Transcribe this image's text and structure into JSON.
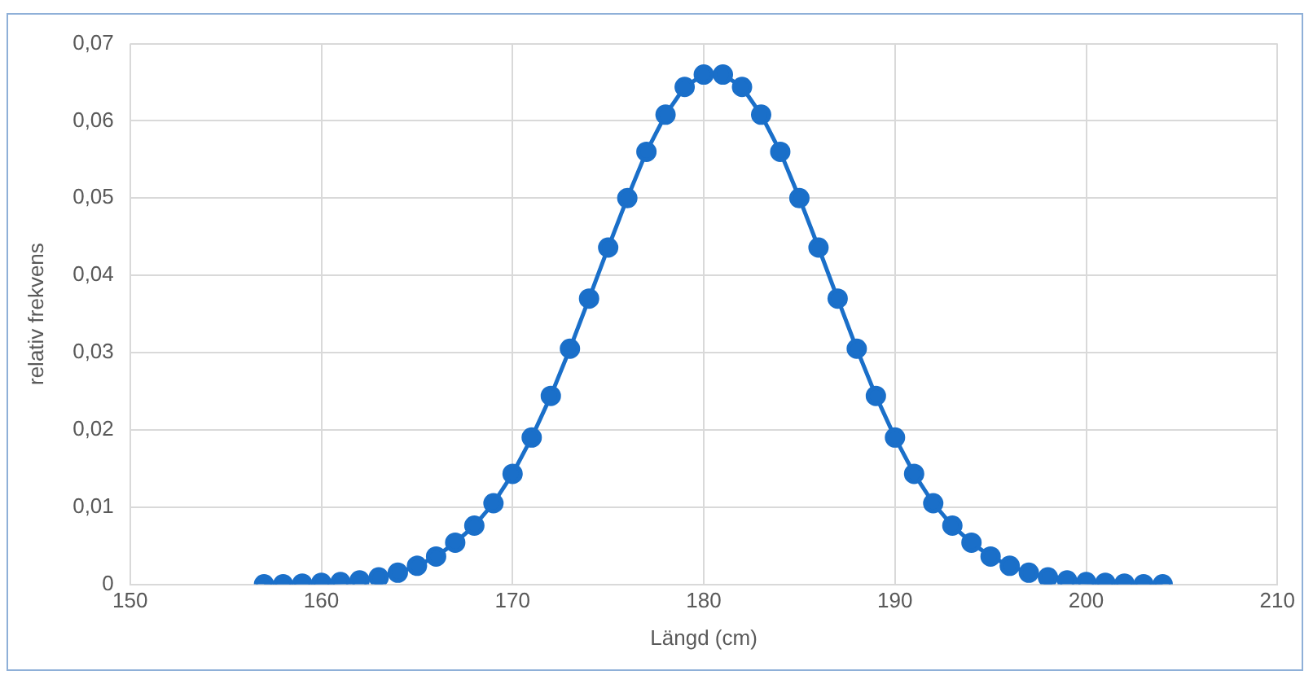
{
  "chart_data": {
    "type": "line",
    "xlabel": "Längd (cm)",
    "ylabel": "relativ frekvens",
    "x": [
      157,
      158,
      159,
      160,
      161,
      162,
      163,
      164,
      165,
      166,
      167,
      168,
      169,
      170,
      171,
      172,
      173,
      174,
      175,
      176,
      177,
      178,
      179,
      180,
      181,
      182,
      183,
      184,
      185,
      186,
      187,
      188,
      189,
      190,
      191,
      192,
      193,
      194,
      195,
      196,
      197,
      198,
      199,
      200,
      201,
      202,
      203,
      204
    ],
    "series": [
      {
        "color": "#1a6fc9",
        "values": [
          0,
          0,
          0.0001,
          0.0002,
          0.0003,
          0.0005,
          0.0009,
          0.0015,
          0.0024,
          0.0036,
          0.0054,
          0.0076,
          0.0105,
          0.0143,
          0.019,
          0.0244,
          0.0305,
          0.037,
          0.0436,
          0.05,
          0.056,
          0.0608,
          0.0644,
          0.066,
          0.066,
          0.0644,
          0.0608,
          0.056,
          0.05,
          0.0436,
          0.037,
          0.0305,
          0.0244,
          0.019,
          0.0143,
          0.0105,
          0.0076,
          0.0054,
          0.0036,
          0.0024,
          0.0015,
          0.0009,
          0.0005,
          0.0003,
          0.0002,
          0.0001,
          0,
          0
        ]
      }
    ],
    "xlim": [
      150,
      210
    ],
    "xticks": [
      150,
      160,
      170,
      180,
      190,
      200,
      210
    ],
    "ylim": [
      0,
      0.07
    ],
    "yticks": [
      0,
      {
        "value": 0.01,
        "label": "0,01"
      },
      {
        "value": 0.02,
        "label": "0,02"
      },
      {
        "value": 0.03,
        "label": "0,03"
      },
      {
        "value": 0.04,
        "label": "0,04"
      },
      {
        "value": 0.05,
        "label": "0,05"
      },
      {
        "value": 0.06,
        "label": "0,06"
      },
      {
        "value": 0.07,
        "label": "0,07"
      }
    ],
    "grid": true,
    "marker": "circle",
    "line_style": "solid",
    "legend": false
  }
}
